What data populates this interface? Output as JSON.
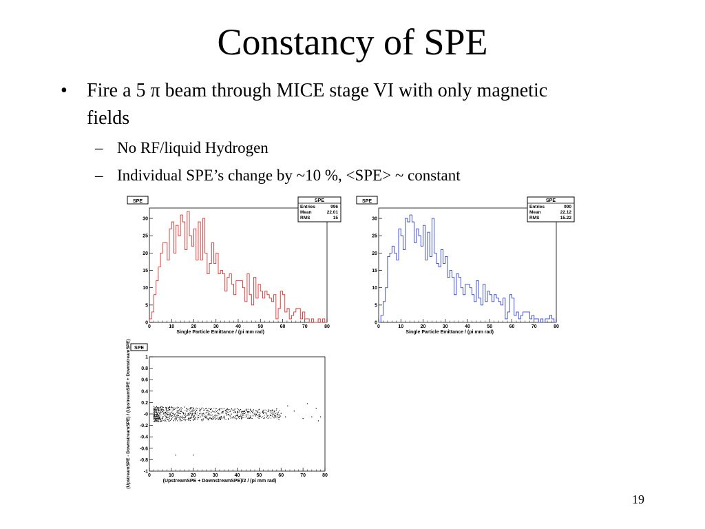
{
  "slide": {
    "title": "Constancy of SPE",
    "bullet": "Fire a 5 π beam through MICE stage VI with only magnetic fields",
    "bullet_marker": "•",
    "subbullet_marker": "–",
    "subbullets": [
      "No RF/liquid Hydrogen",
      "Individual SPE’s change by ~10 %, <SPE> ~ constant"
    ],
    "page_number": "19"
  },
  "chart_data": [
    {
      "type": "bar",
      "title": "SPE",
      "color": "#e03030",
      "stats": [
        {
          "name": "Entries",
          "value": "996"
        },
        {
          "name": "Mean",
          "value": "22.01"
        },
        {
          "name": "RMS",
          "value": "15"
        }
      ],
      "xlabel": "Single Particle Emittance / (pi mm rad)",
      "ylabel": "",
      "xlim": [
        0,
        80
      ],
      "ylim": [
        0,
        33
      ],
      "xticks": [
        "0",
        "10",
        "20",
        "30",
        "40",
        "50",
        "60",
        "70",
        "80"
      ],
      "yticks": [
        "0",
        "5",
        "10",
        "15",
        "20",
        "25",
        "30"
      ],
      "bin_width": 1,
      "values": [
        1,
        3,
        8,
        12,
        16,
        20,
        23,
        23,
        18,
        27,
        29,
        20,
        28,
        25,
        31,
        29,
        21,
        32,
        25,
        22,
        27,
        18,
        29,
        18,
        30,
        20,
        14,
        17,
        23,
        17,
        20,
        14,
        15,
        14,
        9,
        13,
        14,
        11,
        8,
        12,
        12,
        12,
        10,
        6,
        14,
        8,
        5,
        13,
        7,
        11,
        9,
        7,
        9,
        8,
        7,
        6,
        8,
        1,
        4,
        9,
        8,
        3,
        4,
        1,
        2,
        3,
        4,
        4,
        1,
        3,
        1,
        1,
        0,
        1,
        0,
        0,
        1,
        0,
        1,
        0
      ]
    },
    {
      "type": "bar",
      "title": "SPE",
      "color": "#3040d0",
      "stats": [
        {
          "name": "Entries",
          "value": "990"
        },
        {
          "name": "Mean",
          "value": "22.12"
        },
        {
          "name": "RMS",
          "value": "15.22"
        }
      ],
      "xlabel": "Single Particle Emittance / (pi mm rad)",
      "ylabel": "",
      "xlim": [
        0,
        80
      ],
      "ylim": [
        0,
        33
      ],
      "xticks": [
        "0",
        "10",
        "20",
        "30",
        "40",
        "50",
        "60",
        "70",
        "80"
      ],
      "yticks": [
        "0",
        "5",
        "10",
        "15",
        "20",
        "25",
        "30"
      ],
      "bin_width": 1,
      "values": [
        0,
        2,
        6,
        10,
        19,
        20,
        22,
        20,
        18,
        27,
        25,
        21,
        30,
        29,
        31,
        29,
        23,
        27,
        25,
        22,
        28,
        18,
        26,
        19,
        30,
        20,
        17,
        16,
        21,
        17,
        19,
        13,
        15,
        13,
        8,
        14,
        13,
        10,
        8,
        11,
        11,
        10,
        8,
        6,
        12,
        7,
        5,
        11,
        6,
        9,
        8,
        6,
        8,
        7,
        6,
        5,
        7,
        1,
        3,
        8,
        7,
        2,
        3,
        1,
        2,
        3,
        3,
        3,
        1,
        2,
        1,
        1,
        0,
        1,
        0,
        1,
        1,
        2,
        1,
        0
      ]
    },
    {
      "type": "scatter",
      "title": "SPE",
      "xlabel": "(UpstreamSPE + DownstreamSPE)/2 / (pi mm rad)",
      "ylabel": "(UpstreamSPE - DownstreamSPE) / (UpstreamSPE + DownstreamSPE)",
      "xlim": [
        0,
        80
      ],
      "ylim": [
        -1,
        1
      ],
      "xticks": [
        "0",
        "10",
        "20",
        "30",
        "40",
        "50",
        "60",
        "70",
        "80"
      ],
      "yticks": [
        "-1",
        "-0.8",
        "-0.6",
        "-0.4",
        "-0.2",
        "-0",
        "0.2",
        "0.4",
        "0.6",
        "0.8",
        "1"
      ],
      "points": [
        [
          4,
          -0.02
        ],
        [
          5,
          0.05
        ],
        [
          6,
          -0.08
        ],
        [
          7,
          0.02
        ],
        [
          8,
          -0.05
        ],
        [
          9,
          0.08
        ],
        [
          10,
          -0.03
        ],
        [
          11,
          0.01
        ],
        [
          12,
          -0.1
        ],
        [
          13,
          0.06
        ],
        [
          14,
          -0.04
        ],
        [
          15,
          0.03
        ],
        [
          16,
          -0.07
        ],
        [
          17,
          0.09
        ],
        [
          18,
          -0.01
        ],
        [
          19,
          0.04
        ],
        [
          20,
          -0.06
        ],
        [
          21,
          0.02
        ],
        [
          22,
          -0.09
        ],
        [
          23,
          0.05
        ],
        [
          24,
          -0.03
        ],
        [
          25,
          0.07
        ],
        [
          26,
          -0.05
        ],
        [
          27,
          0.01
        ],
        [
          28,
          -0.08
        ],
        [
          29,
          0.04
        ],
        [
          30,
          -0.02
        ],
        [
          31,
          0.06
        ],
        [
          32,
          -0.06
        ],
        [
          33,
          0.03
        ],
        [
          34,
          -0.04
        ],
        [
          35,
          0.08
        ],
        [
          36,
          -0.01
        ],
        [
          37,
          0.05
        ],
        [
          38,
          -0.07
        ],
        [
          39,
          0.02
        ],
        [
          40,
          -0.03
        ],
        [
          41,
          0.06
        ],
        [
          42,
          -0.05
        ],
        [
          43,
          0.01
        ],
        [
          44,
          -0.02
        ],
        [
          45,
          0.04
        ],
        [
          46,
          -0.06
        ],
        [
          47,
          0.03
        ],
        [
          48,
          -0.01
        ],
        [
          49,
          0.05
        ],
        [
          50,
          -0.04
        ],
        [
          52,
          0.02
        ],
        [
          54,
          -0.03
        ],
        [
          55,
          0.06
        ],
        [
          57,
          -0.02
        ],
        [
          58,
          0.09
        ],
        [
          60,
          0.01
        ],
        [
          62,
          -0.05
        ],
        [
          66,
          0.05
        ],
        [
          72,
          0.18
        ],
        [
          74,
          -0.05
        ],
        [
          76,
          0.1
        ],
        [
          77,
          -0.12
        ],
        [
          6,
          0.12
        ],
        [
          8,
          0.1
        ],
        [
          10,
          0.11
        ],
        [
          12,
          0.09
        ],
        [
          14,
          -0.12
        ],
        [
          16,
          0.12
        ],
        [
          18,
          -0.11
        ],
        [
          20,
          0.1
        ],
        [
          22,
          0.09
        ],
        [
          24,
          -0.12
        ],
        [
          26,
          0.1
        ],
        [
          28,
          0.08
        ],
        [
          30,
          -0.1
        ],
        [
          32,
          0.09
        ],
        [
          34,
          0.1
        ],
        [
          36,
          -0.09
        ],
        [
          38,
          0.07
        ],
        [
          40,
          0.09
        ],
        [
          42,
          -0.08
        ],
        [
          44,
          0.07
        ],
        [
          46,
          0.06
        ],
        [
          50,
          0.08
        ],
        [
          56,
          0.07
        ],
        [
          59,
          -0.1
        ],
        [
          63,
          0.14
        ],
        [
          70,
          -0.08
        ],
        [
          78,
          -0.05
        ],
        [
          12,
          -0.72
        ],
        [
          20,
          -0.72
        ]
      ]
    }
  ]
}
